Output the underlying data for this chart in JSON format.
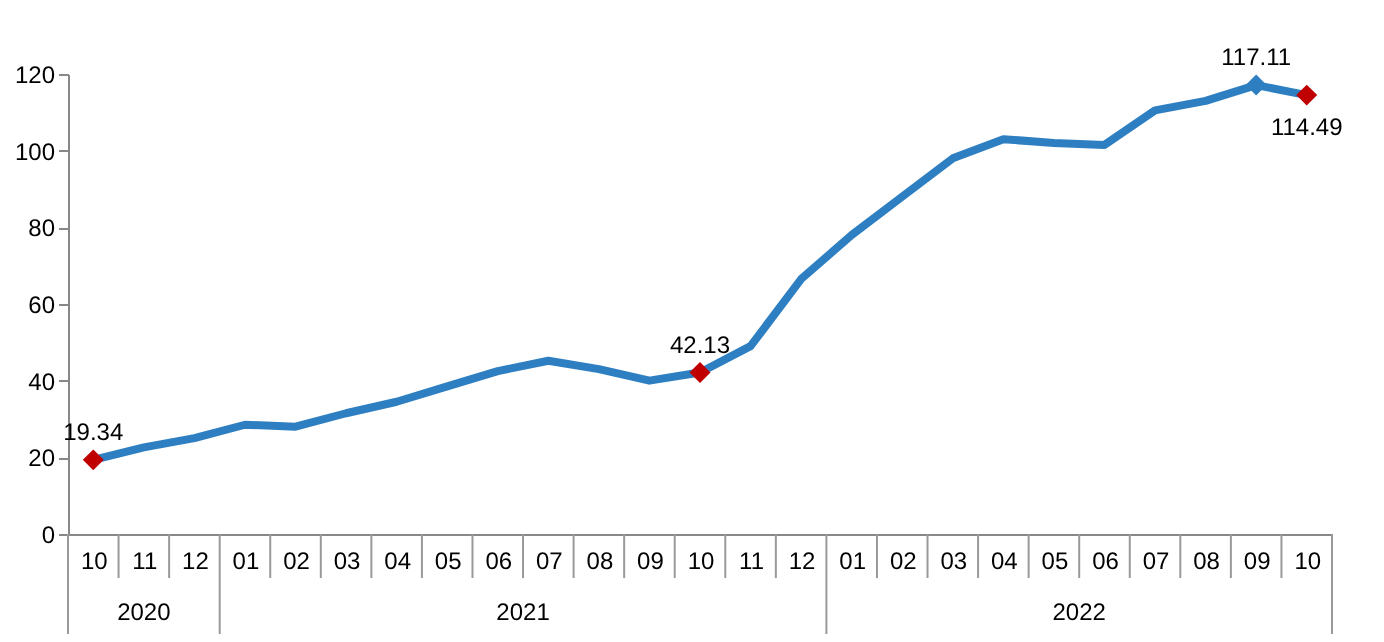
{
  "chart_data": {
    "type": "line",
    "categories": [
      "10",
      "11",
      "12",
      "01",
      "02",
      "03",
      "04",
      "05",
      "06",
      "07",
      "08",
      "09",
      "10",
      "11",
      "12",
      "01",
      "02",
      "03",
      "04",
      "05",
      "06",
      "07",
      "08",
      "09",
      "10"
    ],
    "series": [
      {
        "color": "#2e7fc2",
        "marker": "none",
        "values": [
          19.34,
          22.6,
          25,
          28.5,
          28,
          31.5,
          34.5,
          38.5,
          42.5,
          45.2,
          43,
          40,
          42.13,
          49,
          66.5,
          78,
          88,
          98,
          103,
          102,
          101.5,
          110.5,
          113,
          117.11,
          114.49
        ]
      },
      {
        "type": "scatter",
        "marker": "diamond",
        "colors": [
          "#c00000",
          null,
          null,
          null,
          null,
          null,
          null,
          null,
          null,
          null,
          null,
          null,
          "#c00000",
          null,
          null,
          null,
          null,
          null,
          null,
          null,
          null,
          null,
          null,
          "#2e7fc2",
          "#c00000"
        ],
        "values": [
          19.34,
          null,
          null,
          null,
          null,
          null,
          null,
          null,
          null,
          null,
          null,
          null,
          42.13,
          null,
          null,
          null,
          null,
          null,
          null,
          null,
          null,
          null,
          null,
          117.11,
          114.49
        ],
        "value_labels": [
          "19.34",
          null,
          null,
          null,
          null,
          null,
          null,
          null,
          null,
          null,
          null,
          null,
          "42.13",
          null,
          null,
          null,
          null,
          null,
          null,
          null,
          null,
          null,
          null,
          "117.11",
          "114.49"
        ]
      }
    ],
    "annotations": [
      "2020",
      "2021",
      "2022"
    ],
    "ylim": [
      0,
      120
    ],
    "yticks": [
      0,
      20,
      40,
      60,
      80,
      100,
      120
    ],
    "grid": false
  }
}
